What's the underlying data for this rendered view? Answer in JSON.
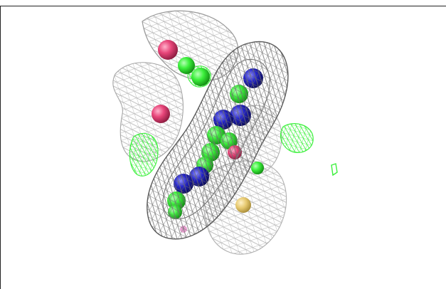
{
  "viewer": {
    "render_mode": "mesh-density-with-spheres",
    "colors": {
      "background": "#ffffff",
      "mesh_dark": "#6e6e6e",
      "mesh_light": "#bdbdbd",
      "atom_carbon": "#3cf03c",
      "atom_nitrogen": "#2323c8",
      "atom_oxygen": "#e8467a",
      "atom_sulfur": "#e6c86e",
      "atom_hydrogen": "#e8a0d0"
    },
    "icons": {
      "mesh": "density-mesh-icon",
      "atoms": "atom-sphere-icon"
    }
  }
}
